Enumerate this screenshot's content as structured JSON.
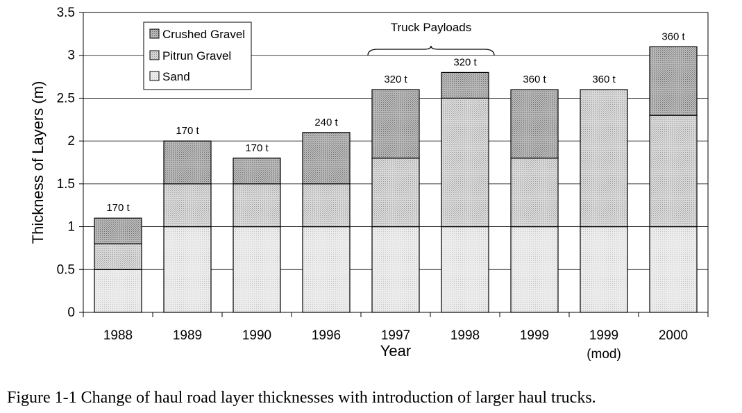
{
  "caption": "Figure 1-1 Change of haul road layer thicknesses with introduction of larger haul trucks.",
  "chart_data": {
    "type": "bar",
    "stacked": true,
    "categories": [
      {
        "line1": "1988",
        "line2": ""
      },
      {
        "line1": "1989",
        "line2": ""
      },
      {
        "line1": "1990",
        "line2": ""
      },
      {
        "line1": "1996",
        "line2": ""
      },
      {
        "line1": "1997",
        "line2": ""
      },
      {
        "line1": "1998",
        "line2": ""
      },
      {
        "line1": "1999",
        "line2": ""
      },
      {
        "line1": "1999",
        "line2": "(mod)"
      },
      {
        "line1": "2000",
        "line2": ""
      }
    ],
    "series": [
      {
        "name": "Sand",
        "values": [
          0.5,
          1.0,
          1.0,
          1.0,
          1.0,
          1.0,
          1.0,
          1.0,
          1.0
        ],
        "color": "#e4e4e4"
      },
      {
        "name": "Pitrun Gravel",
        "values": [
          0.3,
          0.5,
          0.5,
          0.5,
          0.8,
          1.5,
          0.8,
          1.6,
          1.3
        ],
        "color": "#cfcfcf"
      },
      {
        "name": "Crushed Gravel",
        "values": [
          0.3,
          0.5,
          0.3,
          0.6,
          0.8,
          0.3,
          0.8,
          0.0,
          0.8
        ],
        "color": "#a9a9a9"
      }
    ],
    "legend_order": [
      "Crushed Gravel",
      "Pitrun Gravel",
      "Sand"
    ],
    "bar_labels": [
      "170 t",
      "170 t",
      "170 t",
      "240 t",
      "320 t",
      "320 t",
      "360 t",
      "360 t",
      "360 t"
    ],
    "annotation": {
      "text": "Truck Payloads",
      "from_index": 4,
      "to_index": 6
    },
    "xlabel": "Year",
    "ylabel": "Thickness of Layers (m)",
    "ylim": [
      0,
      3.5
    ],
    "yticks": [
      "0",
      "0.5",
      "1",
      "1.5",
      "2",
      "2.5",
      "3",
      "3.5"
    ],
    "grid": true,
    "legend_position": "top-left"
  }
}
